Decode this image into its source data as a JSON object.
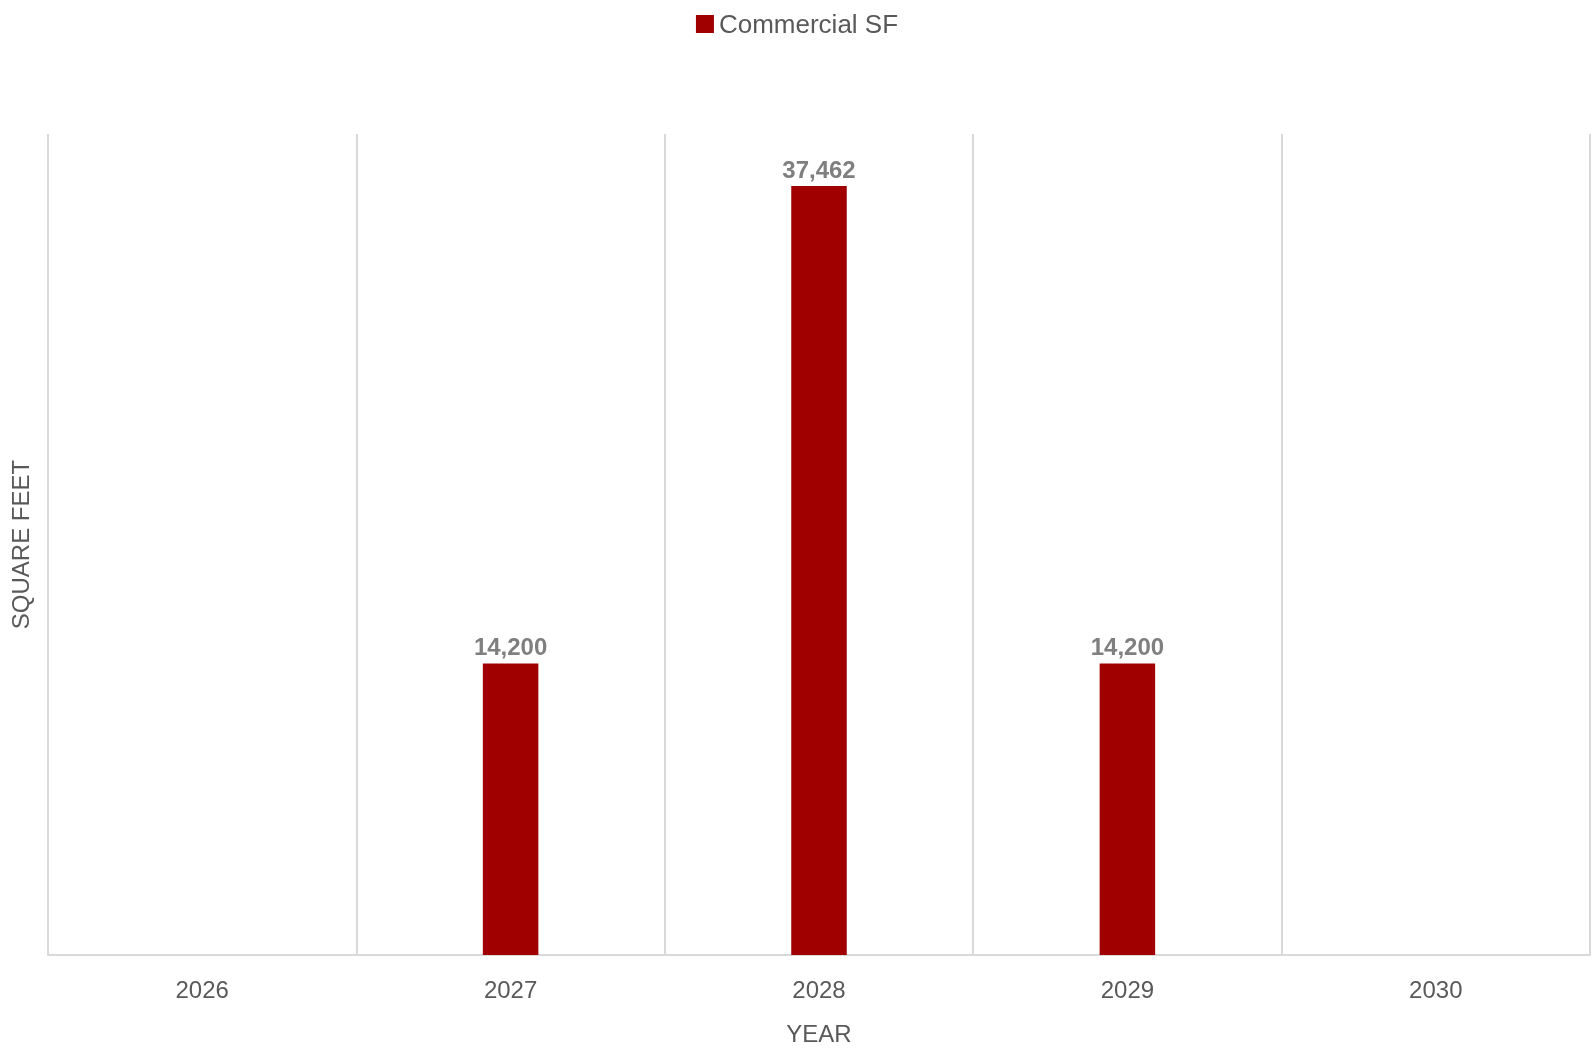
{
  "chart_data": {
    "type": "bar",
    "xlabel": "YEAR",
    "ylabel": "SQUARE FEET",
    "categories": [
      "2026",
      "2027",
      "2028",
      "2029",
      "2030"
    ],
    "series": [
      {
        "name": "Commercial SF",
        "color": "#a00000",
        "values": [
          null,
          14200,
          37462,
          14200,
          null
        ],
        "value_labels": [
          null,
          "14,200",
          "37,462",
          "14,200",
          null
        ]
      }
    ],
    "grid": "x",
    "legend": "top",
    "tick_labels": "x"
  }
}
